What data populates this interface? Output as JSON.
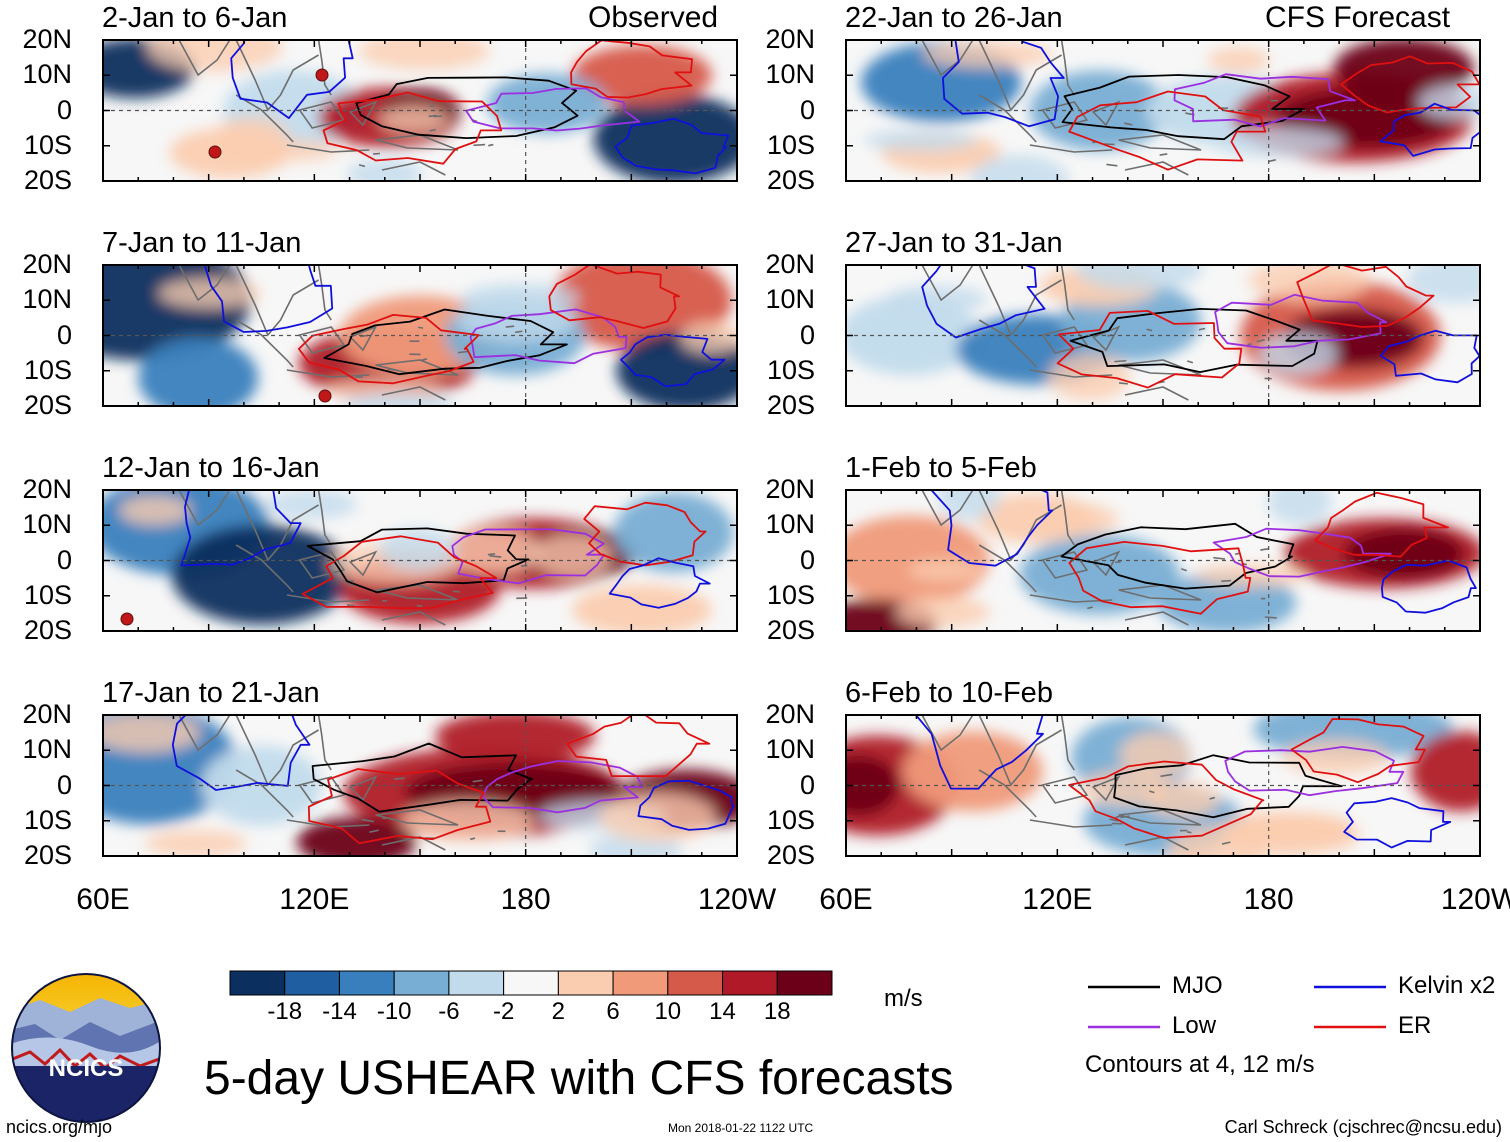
{
  "header": {
    "left_label": "Observed",
    "right_label": "CFS Forecast"
  },
  "panels": [
    {
      "id": "p1",
      "title": "2-Jan to 6-Jan",
      "kind": "observed"
    },
    {
      "id": "p2",
      "title": "7-Jan to 11-Jan",
      "kind": "observed"
    },
    {
      "id": "p3",
      "title": "12-Jan to 16-Jan",
      "kind": "observed"
    },
    {
      "id": "p4",
      "title": "17-Jan to 21-Jan",
      "kind": "observed"
    },
    {
      "id": "p5",
      "title": "22-Jan to 26-Jan",
      "kind": "forecast"
    },
    {
      "id": "p6",
      "title": "27-Jan to 31-Jan",
      "kind": "forecast"
    },
    {
      "id": "p7",
      "title": "1-Feb to 5-Feb",
      "kind": "forecast"
    },
    {
      "id": "p8",
      "title": "6-Feb to 10-Feb",
      "kind": "forecast"
    }
  ],
  "lat_labels": [
    "20N",
    "10N",
    "0",
    "10S",
    "20S"
  ],
  "lon_labels": [
    "60E",
    "120E",
    "180",
    "120W"
  ],
  "colorbar": {
    "ticks": [
      "-18",
      "-14",
      "-10",
      "-6",
      "-2",
      "2",
      "6",
      "10",
      "14",
      "18"
    ],
    "colors": [
      "#0b2f5e",
      "#1f5ea0",
      "#3a7fbd",
      "#78aed4",
      "#c2dbec",
      "#f7f7f7",
      "#fbcdb0",
      "#f09a7a",
      "#d65a4a",
      "#b01a28",
      "#6b0018"
    ],
    "units": "m/s"
  },
  "legend": {
    "items": [
      {
        "label": "MJO",
        "color": "#000000"
      },
      {
        "label": "Kelvin x2",
        "color": "#1010dd"
      },
      {
        "label": "Low",
        "color": "#9b30e0"
      },
      {
        "label": "ER",
        "color": "#e01010"
      }
    ],
    "note": "Contours at 4, 12 m/s"
  },
  "title": "5-day USHEAR with CFS forecasts",
  "logo": {
    "text": "NCICS"
  },
  "footer": {
    "url": "ncics.org/mjo",
    "timestamp": "Mon 2018-01-22 1122 UTC",
    "credit": "Carl Schreck (cjschrec@ncsu.edu)"
  }
}
